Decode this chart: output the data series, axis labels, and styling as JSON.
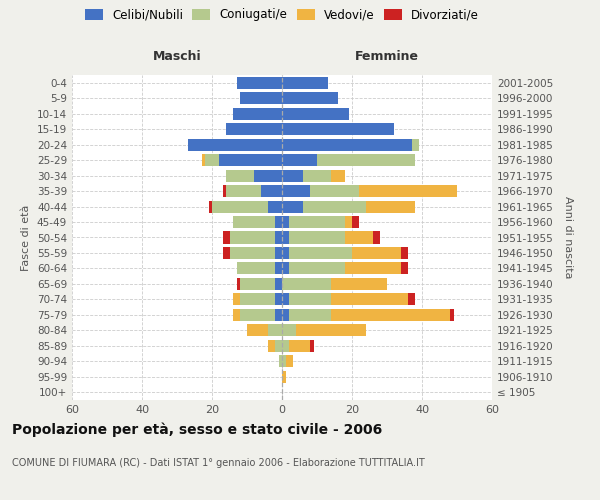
{
  "age_groups": [
    "100+",
    "95-99",
    "90-94",
    "85-89",
    "80-84",
    "75-79",
    "70-74",
    "65-69",
    "60-64",
    "55-59",
    "50-54",
    "45-49",
    "40-44",
    "35-39",
    "30-34",
    "25-29",
    "20-24",
    "15-19",
    "10-14",
    "5-9",
    "0-4"
  ],
  "birth_years": [
    "≤ 1905",
    "1906-1910",
    "1911-1915",
    "1916-1920",
    "1921-1925",
    "1926-1930",
    "1931-1935",
    "1936-1940",
    "1941-1945",
    "1946-1950",
    "1951-1955",
    "1956-1960",
    "1961-1965",
    "1966-1970",
    "1971-1975",
    "1976-1980",
    "1981-1985",
    "1986-1990",
    "1991-1995",
    "1996-2000",
    "2001-2005"
  ],
  "maschi": {
    "celibi": [
      0,
      0,
      0,
      0,
      0,
      2,
      2,
      2,
      2,
      2,
      2,
      2,
      4,
      6,
      8,
      18,
      27,
      16,
      14,
      12,
      13
    ],
    "coniugati": [
      0,
      0,
      1,
      2,
      4,
      10,
      10,
      10,
      11,
      13,
      13,
      12,
      16,
      10,
      8,
      4,
      0,
      0,
      0,
      0,
      0
    ],
    "vedovi": [
      0,
      0,
      0,
      2,
      6,
      2,
      2,
      0,
      0,
      0,
      0,
      0,
      0,
      0,
      0,
      1,
      0,
      0,
      0,
      0,
      0
    ],
    "divorziati": [
      0,
      0,
      0,
      0,
      0,
      0,
      0,
      1,
      0,
      2,
      2,
      0,
      1,
      1,
      0,
      0,
      0,
      0,
      0,
      0,
      0
    ]
  },
  "femmine": {
    "nubili": [
      0,
      0,
      0,
      0,
      0,
      2,
      2,
      0,
      2,
      2,
      2,
      2,
      6,
      8,
      6,
      10,
      37,
      32,
      19,
      16,
      13
    ],
    "coniugate": [
      0,
      0,
      1,
      2,
      4,
      12,
      12,
      14,
      16,
      18,
      16,
      16,
      18,
      14,
      8,
      28,
      2,
      0,
      0,
      0,
      0
    ],
    "vedove": [
      0,
      1,
      2,
      6,
      20,
      34,
      22,
      16,
      16,
      14,
      8,
      2,
      14,
      28,
      4,
      0,
      0,
      0,
      0,
      0,
      0
    ],
    "divorziate": [
      0,
      0,
      0,
      1,
      0,
      1,
      2,
      0,
      2,
      2,
      2,
      2,
      0,
      0,
      0,
      0,
      0,
      0,
      0,
      0,
      0
    ]
  },
  "colors": {
    "celibi_nubili": "#4472C4",
    "coniugati_e": "#b5c98e",
    "vedovi_e": "#f0b442",
    "divorziati_e": "#cc2222"
  },
  "xlim": 60,
  "title": "Popolazione per età, sesso e stato civile - 2006",
  "subtitle": "COMUNE DI FIUMARA (RC) - Dati ISTAT 1° gennaio 2006 - Elaborazione TUTTITALIA.IT",
  "ylabel_left": "Fasce di età",
  "ylabel_right": "Anni di nascita",
  "xlabel_left": "Maschi",
  "xlabel_right": "Femmine",
  "bg_color": "#f0f0eb",
  "plot_bg": "#ffffff",
  "legend_labels": [
    "Celibi/Nubili",
    "Coniugati/e",
    "Vedovi/e",
    "Divorziati/e"
  ]
}
